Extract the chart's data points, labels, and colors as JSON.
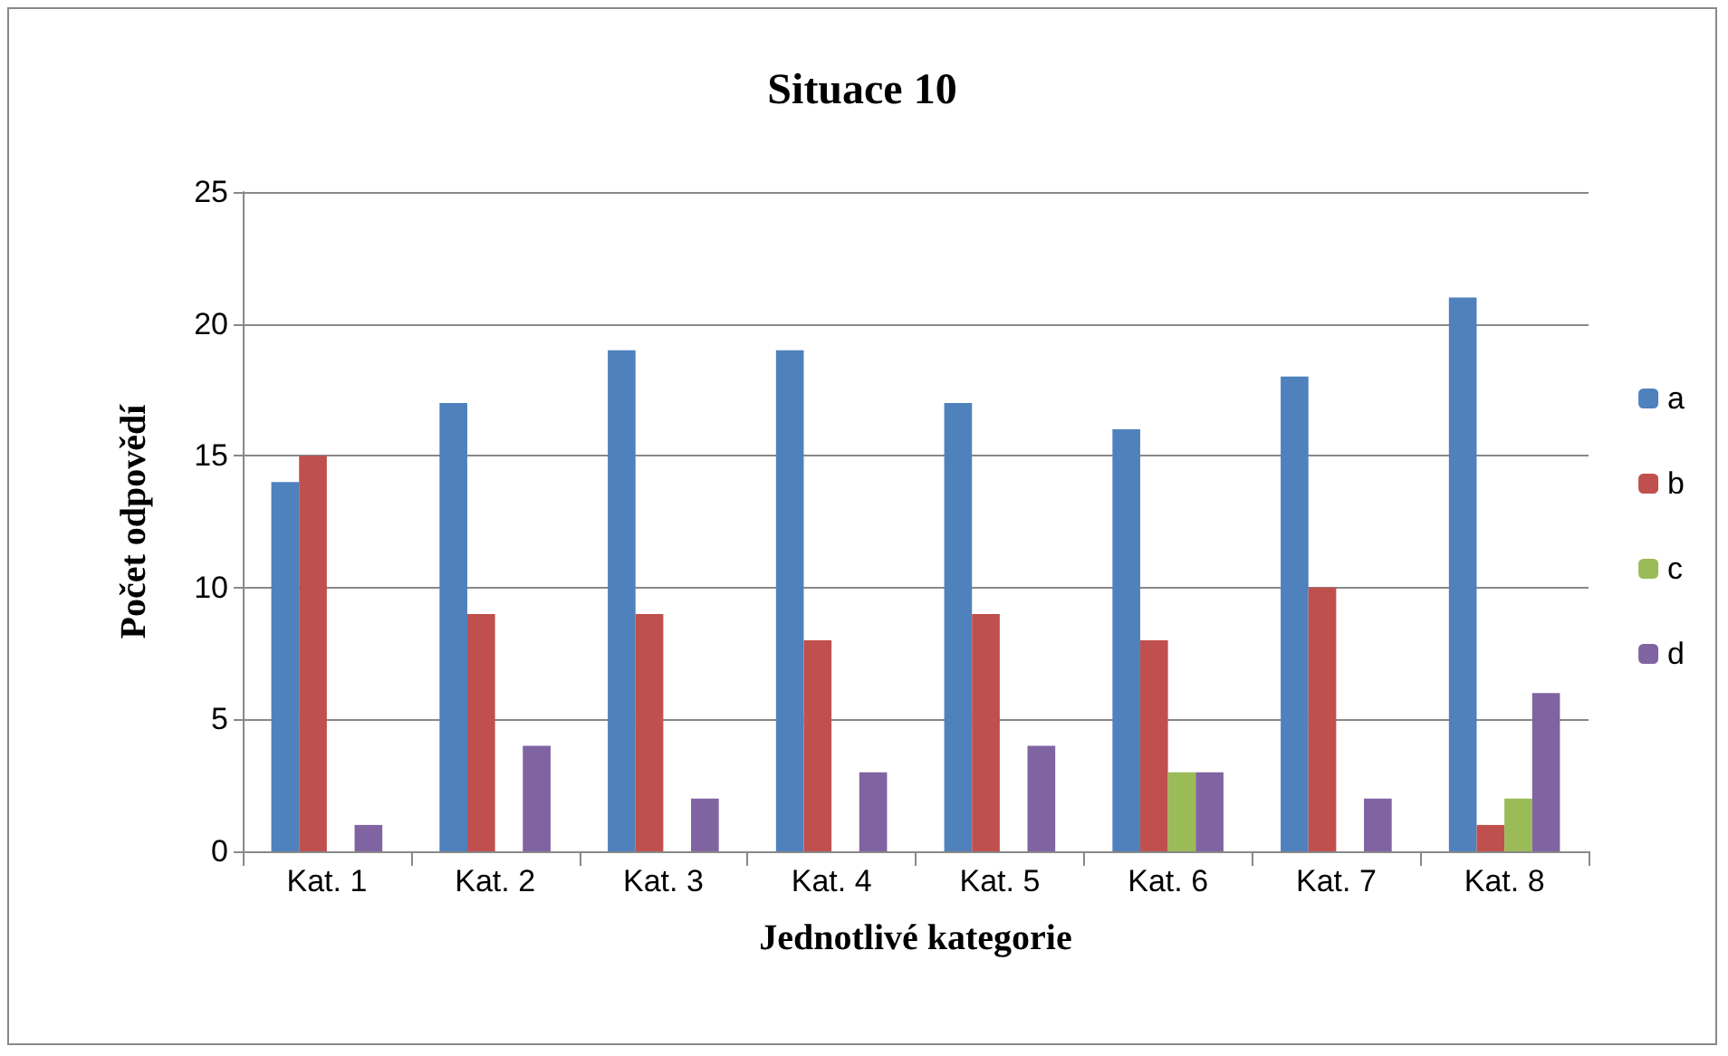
{
  "chart_data": {
    "type": "bar",
    "title": "Situace 10",
    "xlabel": "Jednotlivé kategorie",
    "ylabel": "Počet odpovědí",
    "categories": [
      "Kat. 1",
      "Kat. 2",
      "Kat. 3",
      "Kat. 4",
      "Kat. 5",
      "Kat. 6",
      "Kat. 7",
      "Kat. 8"
    ],
    "series": [
      {
        "name": "a",
        "color": "#4f81bd",
        "values": [
          14,
          17,
          19,
          19,
          17,
          16,
          18,
          21
        ]
      },
      {
        "name": "b",
        "color": "#c0504d",
        "values": [
          15,
          9,
          9,
          8,
          9,
          8,
          10,
          1
        ]
      },
      {
        "name": "c",
        "color": "#9bbb59",
        "values": [
          0,
          0,
          0,
          0,
          0,
          3,
          0,
          2
        ]
      },
      {
        "name": "d",
        "color": "#8064a2",
        "values": [
          1,
          4,
          2,
          3,
          4,
          3,
          2,
          6
        ]
      }
    ],
    "ylim": [
      0,
      25
    ],
    "yticks": [
      0,
      5,
      10,
      15,
      20,
      25
    ],
    "grid": "y",
    "legend": "right"
  }
}
